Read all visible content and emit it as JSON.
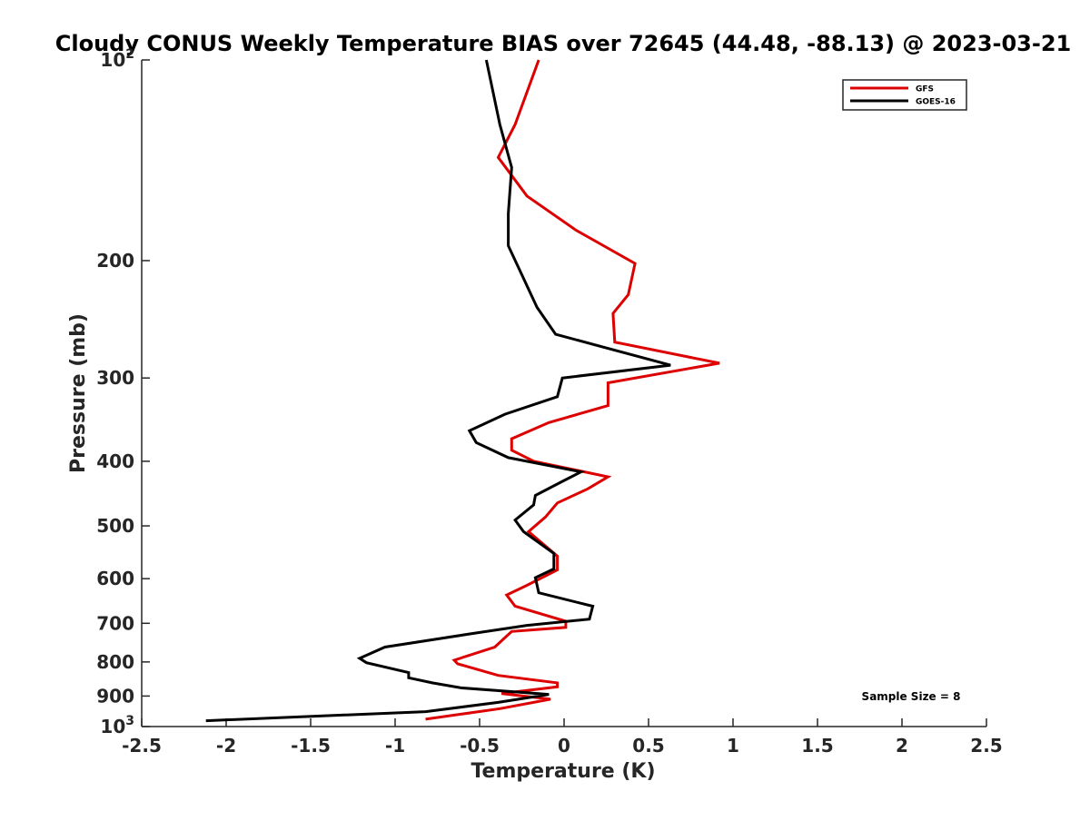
{
  "chart_data": {
    "type": "line",
    "title": "Cloudy CONUS Weekly Temperature BIAS over 72645 (44.48, -88.13) @ 2023-03-21",
    "xlabel": "Temperature (K)",
    "ylabel": "Pressure (mb)",
    "xlim": [
      -2.5,
      2.5
    ],
    "ylim": [
      100,
      1000
    ],
    "yscale": "log",
    "y_reversed": true,
    "grid": false,
    "legend_position": "top-right",
    "x_ticks": [
      "-2.5",
      "-2",
      "-1.5",
      "-1",
      "-0.5",
      "0",
      "0.5",
      "1",
      "1.5",
      "2",
      "2.5"
    ],
    "y_ticks": [
      {
        "value": 100,
        "base": "10",
        "exp": "2"
      },
      {
        "value": 200,
        "label": "200"
      },
      {
        "value": 300,
        "label": "300"
      },
      {
        "value": 400,
        "label": "400"
      },
      {
        "value": 500,
        "label": "500"
      },
      {
        "value": 600,
        "label": "600"
      },
      {
        "value": 700,
        "label": "700"
      },
      {
        "value": 800,
        "label": "800"
      },
      {
        "value": 900,
        "label": "900"
      },
      {
        "value": 1000,
        "base": "10",
        "exp": "3"
      }
    ],
    "series": [
      {
        "name": "GFS",
        "color": "#dd0000",
        "x": [
          -0.15,
          -0.29,
          -0.39,
          -0.22,
          0.07,
          0.42,
          0.38,
          0.29,
          0.3,
          0.92,
          0.26,
          0.26,
          -0.09,
          -0.31,
          -0.31,
          -0.18,
          0.26,
          0.14,
          -0.04,
          -0.11,
          -0.21,
          -0.04,
          -0.04,
          -0.22,
          -0.34,
          -0.29,
          0.01,
          0.01,
          -0.31,
          -0.41,
          -0.65,
          -0.63,
          -0.39,
          -0.04,
          -0.04,
          -0.37,
          -0.08,
          -0.38,
          -0.82
        ],
        "y": [
          100,
          125,
          140,
          160,
          180,
          202,
          225,
          240,
          265,
          285,
          305,
          330,
          350,
          370,
          385,
          400,
          422,
          440,
          462,
          485,
          510,
          555,
          582,
          614,
          635,
          660,
          695,
          710,
          720,
          760,
          795,
          805,
          838,
          860,
          872,
          892,
          910,
          940,
          975
        ]
      },
      {
        "name": "GOES-16",
        "color": "#000000",
        "x": [
          -0.46,
          -0.38,
          -0.31,
          -0.33,
          -0.33,
          -0.25,
          -0.16,
          -0.05,
          0.63,
          -0.01,
          -0.04,
          -0.35,
          -0.56,
          -0.52,
          -0.33,
          0.1,
          -0.02,
          -0.17,
          -0.18,
          -0.29,
          -0.24,
          -0.06,
          -0.06,
          -0.17,
          -0.15,
          0.17,
          0.15,
          -0.22,
          -0.54,
          -1.06,
          -1.21,
          -1.17,
          -0.92,
          -0.92,
          -0.78,
          -0.61,
          -0.09,
          -0.39,
          -0.82,
          -2.12
        ],
        "y": [
          100,
          125,
          145,
          170,
          190,
          210,
          235,
          258,
          287,
          300,
          320,
          340,
          360,
          375,
          395,
          415,
          430,
          450,
          465,
          490,
          510,
          550,
          580,
          598,
          630,
          660,
          690,
          705,
          725,
          760,
          790,
          802,
          830,
          845,
          860,
          875,
          895,
          920,
          950,
          980
        ]
      }
    ],
    "annotation": "Sample Size = 8"
  }
}
